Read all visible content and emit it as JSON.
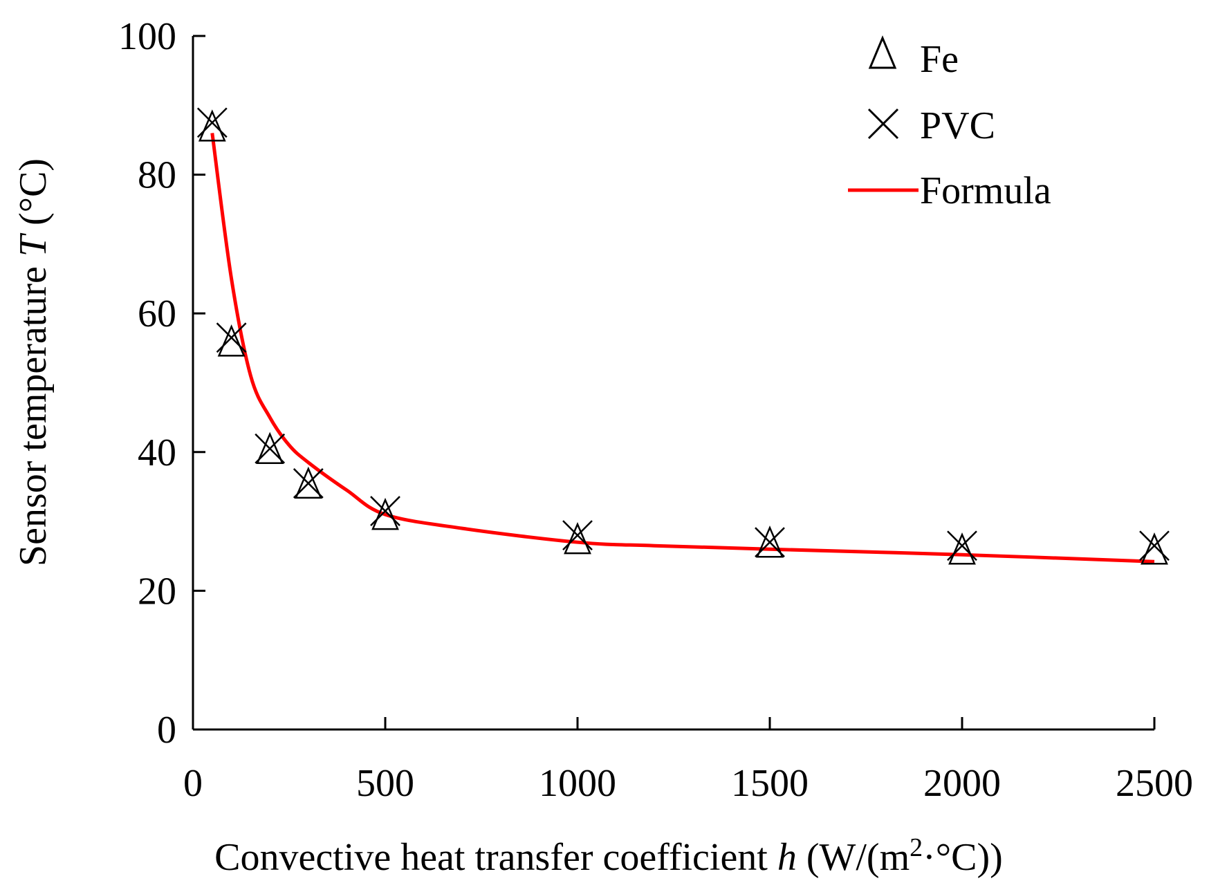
{
  "chart_data": {
    "type": "scatter",
    "title": "",
    "xlabel": {
      "prefix": "Convective heat transfer coefficient ",
      "var": "h",
      "unit_open": " (W/(m",
      "unit_sup": "2",
      "unit_close": "·°C))"
    },
    "ylabel": {
      "prefix": "Sensor temperature ",
      "var": "T",
      "unit": " (°C)"
    },
    "xlim": [
      0,
      2500
    ],
    "ylim": [
      0,
      100
    ],
    "x_ticks": [
      0,
      500,
      1000,
      1500,
      2000,
      2500
    ],
    "y_ticks": [
      0,
      20,
      40,
      60,
      80,
      100
    ],
    "x_tick_labels": [
      "0",
      "500",
      "1000",
      "1500",
      "2000",
      "2500"
    ],
    "y_tick_labels": [
      "0",
      "20",
      "40",
      "60",
      "80",
      "100"
    ],
    "grid": false,
    "legend_position": "top-right",
    "series": [
      {
        "name": "Fe",
        "marker": "triangle",
        "color": "#000000",
        "x": [
          50,
          100,
          200,
          300,
          500,
          1000,
          1500,
          2000,
          2500
        ],
        "y": [
          87,
          56,
          40.5,
          35.5,
          31,
          27.5,
          27,
          26,
          26
        ]
      },
      {
        "name": "PVC",
        "marker": "cross",
        "color": "#000000",
        "x": [
          50,
          100,
          200,
          300,
          500,
          1000,
          1500,
          2000,
          2500
        ],
        "y": [
          87.5,
          56.5,
          40.5,
          35.5,
          31.5,
          28,
          27,
          26.5,
          26.5
        ]
      },
      {
        "name": "Formula",
        "marker": "line",
        "color": "#ff0000",
        "x": [
          50,
          100,
          150,
          200,
          250,
          300,
          400,
          500,
          700,
          1000,
          1200,
          1500,
          2000,
          2500
        ],
        "y": [
          86,
          65,
          51,
          45,
          41,
          38.5,
          34.5,
          31,
          29,
          27,
          26.5,
          26,
          25.2,
          24.2
        ]
      }
    ]
  }
}
